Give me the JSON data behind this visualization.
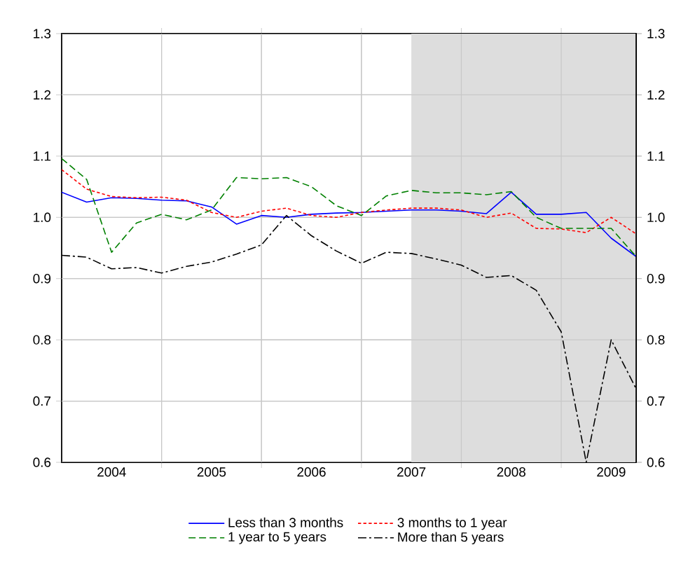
{
  "chart_data": {
    "type": "line",
    "x": [
      2004.0,
      2004.25,
      2004.5,
      2004.75,
      2005.0,
      2005.25,
      2005.5,
      2005.75,
      2006.0,
      2006.25,
      2006.5,
      2006.75,
      2007.0,
      2007.25,
      2007.5,
      2007.75,
      2008.0,
      2008.25,
      2008.5,
      2008.75,
      2009.0,
      2009.25,
      2009.5,
      2009.75
    ],
    "series": [
      {
        "name": "Less than 3 months",
        "color": "#0000ff",
        "line_style": "solid",
        "values": [
          1.041,
          1.025,
          1.032,
          1.031,
          1.028,
          1.027,
          1.017,
          0.989,
          1.003,
          1.0,
          1.005,
          1.007,
          1.008,
          1.01,
          1.012,
          1.012,
          1.01,
          1.006,
          1.041,
          1.005,
          1.005,
          1.008,
          0.966,
          0.936
        ]
      },
      {
        "name": "3 months to 1 year",
        "color": "#ff0000",
        "line_style": "dashed",
        "values": [
          1.078,
          1.046,
          1.034,
          1.032,
          1.033,
          1.028,
          1.008,
          1.0,
          1.01,
          1.015,
          1.003,
          1.0,
          1.008,
          1.012,
          1.015,
          1.015,
          1.012,
          1.0,
          1.007,
          0.982,
          0.981,
          0.975,
          1.0,
          0.973
        ]
      },
      {
        "name": "1 year to 5 years",
        "color": "#008000",
        "line_style": "longdashed",
        "values": [
          1.096,
          1.062,
          0.943,
          0.991,
          1.005,
          0.996,
          1.012,
          1.065,
          1.063,
          1.065,
          1.05,
          1.019,
          1.003,
          1.035,
          1.044,
          1.04,
          1.04,
          1.037,
          1.042,
          1.0,
          0.982,
          0.982,
          0.982,
          0.936
        ]
      },
      {
        "name": "More than 5 years",
        "color": "#000000",
        "line_style": "dashdot",
        "values": [
          0.938,
          0.935,
          0.916,
          0.918,
          0.909,
          0.92,
          0.927,
          0.94,
          0.955,
          1.003,
          0.97,
          0.945,
          0.925,
          0.943,
          0.941,
          0.932,
          0.922,
          0.902,
          0.905,
          0.881,
          0.813,
          0.6,
          0.8,
          0.72
        ]
      }
    ],
    "xlim": [
      2004.0,
      2009.75
    ],
    "xticks": [
      {
        "value": 2004.5,
        "label": "2004"
      },
      {
        "value": 2005,
        "label": null
      },
      {
        "value": 2005.5,
        "label": "2005"
      },
      {
        "value": 2006,
        "label": null
      },
      {
        "value": 2006.5,
        "label": "2006"
      },
      {
        "value": 2007,
        "label": null
      },
      {
        "value": 2007.5,
        "label": "2007"
      },
      {
        "value": 2008,
        "label": null
      },
      {
        "value": 2008.5,
        "label": "2008"
      },
      {
        "value": 2009,
        "label": null
      },
      {
        "value": 2009.5,
        "label": "2009"
      }
    ],
    "ylim": [
      0.6,
      1.3
    ],
    "yticks": [
      0.6,
      0.7,
      0.8,
      0.9,
      {
        "value": 1.0,
        "label": "1.0"
      },
      1.1,
      1.2,
      1.3
    ],
    "y2lim": [
      0.6,
      1.3
    ],
    "y2ticks": [
      0.6,
      0.7,
      0.8,
      0.9,
      {
        "value": 1.0,
        "label": "1.0"
      },
      1.1,
      1.2,
      1.3
    ],
    "bands": [
      {
        "axis": "x",
        "from": 2007.5,
        "to": 2009.75,
        "color": "#dddddd"
      }
    ],
    "grid": true,
    "legend": "bottom"
  }
}
